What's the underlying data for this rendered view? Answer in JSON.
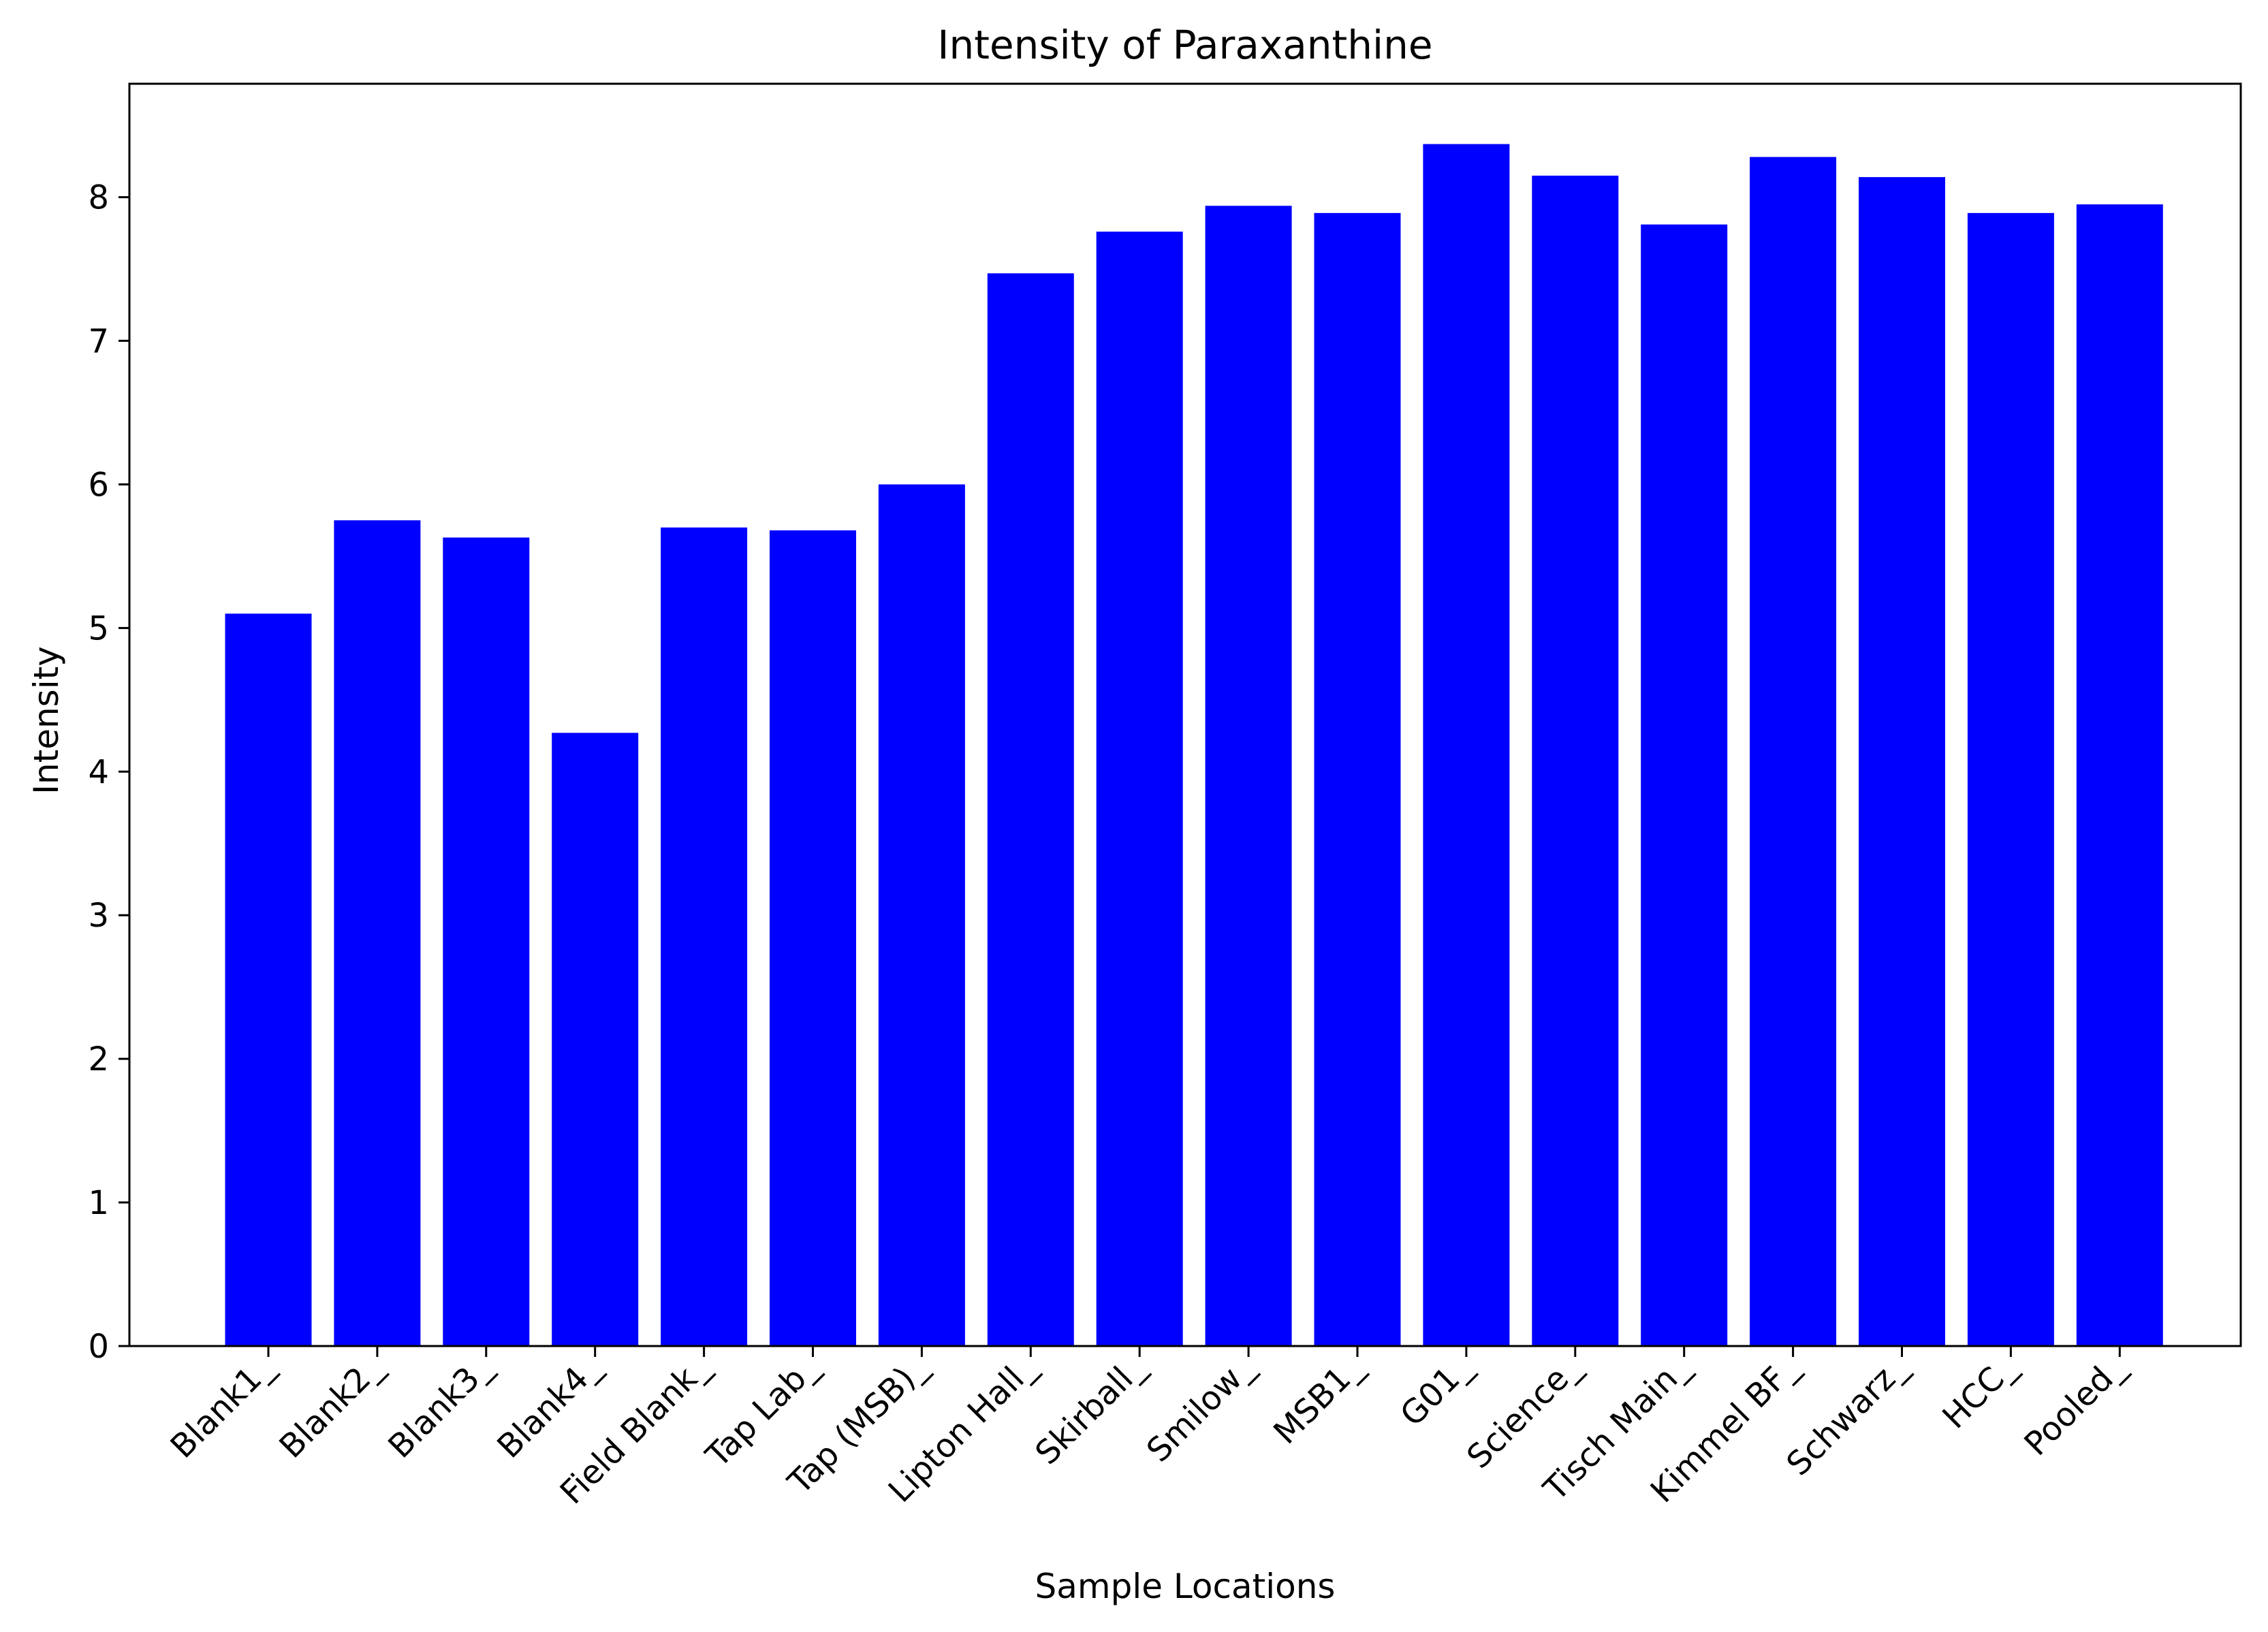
{
  "chart_data": {
    "type": "bar",
    "title": "Intensity of Paraxanthine",
    "xlabel": "Sample Locations",
    "ylabel": "Intensity",
    "categories": [
      "Blank1_",
      "Blank2_",
      "Blank3_",
      "Blank4_",
      "Field Blank_",
      "Tap Lab_",
      "Tap (MSB)_",
      "Lipton Hall_",
      "Skirball_",
      "Smilow_",
      "MSB1_",
      "G01_",
      "Science_",
      "Tisch Main_",
      "Kimmel BF_",
      "Schwarz_",
      "HCC_",
      "Pooled_"
    ],
    "values": [
      5.1,
      5.75,
      5.63,
      4.27,
      5.7,
      5.68,
      6.0,
      7.47,
      7.76,
      7.94,
      7.89,
      8.37,
      8.15,
      7.81,
      8.28,
      8.14,
      7.89,
      7.95
    ],
    "yticks": [
      0,
      1,
      2,
      3,
      4,
      5,
      6,
      7,
      8
    ],
    "ylim": [
      0,
      8.79
    ],
    "grid": false,
    "legend": "none",
    "bar_color": "#0000ff"
  }
}
